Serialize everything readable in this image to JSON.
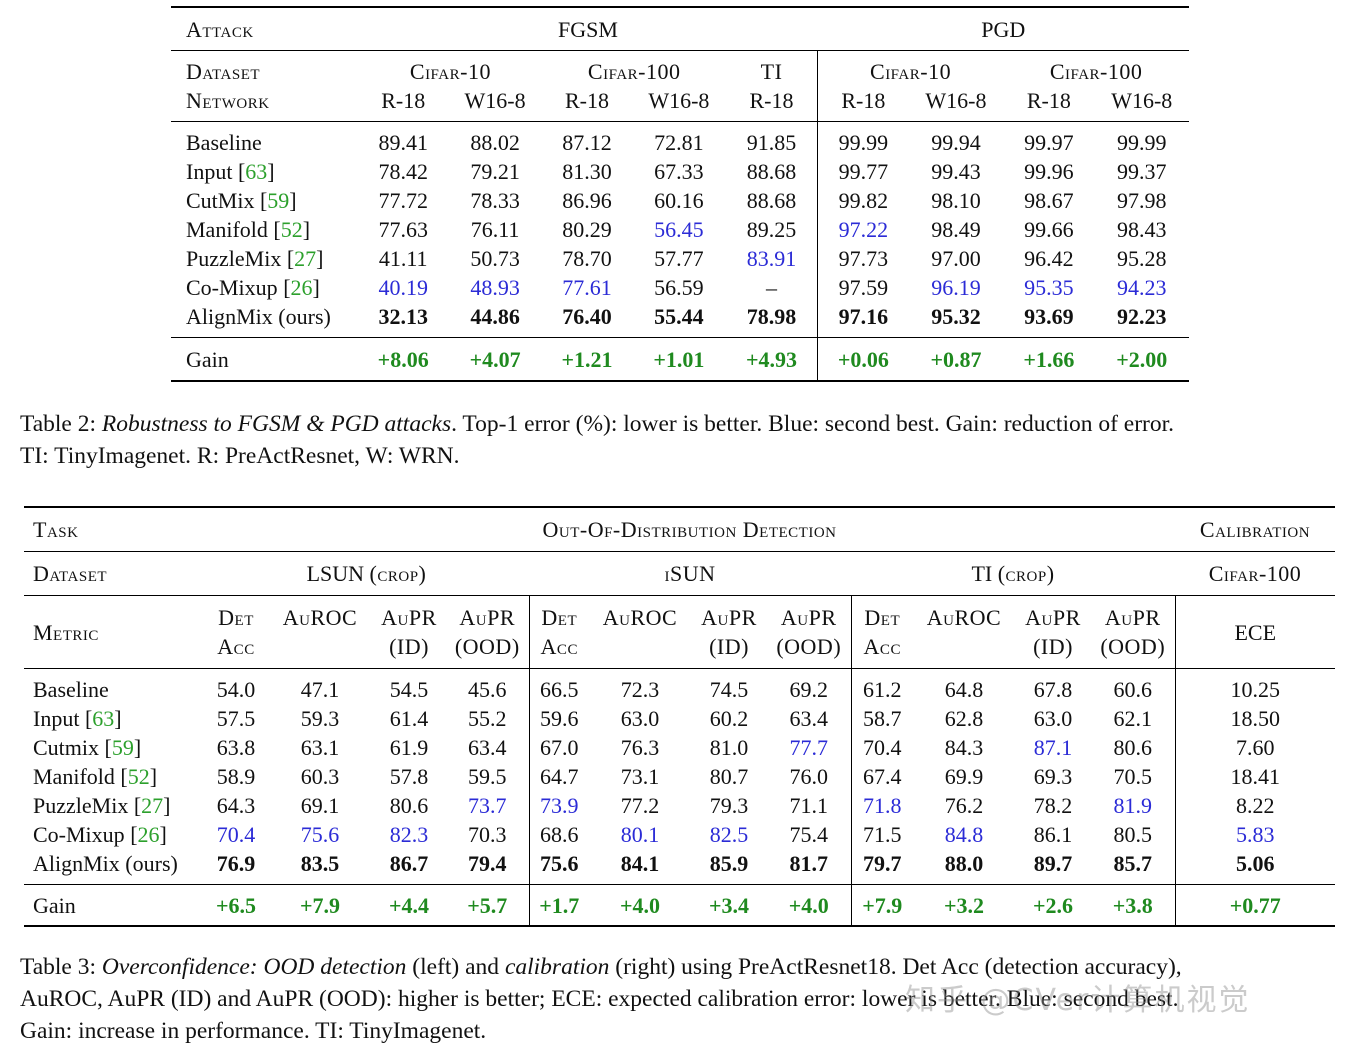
{
  "table2": {
    "attack_label": "Attack",
    "fgsm": "FGSM",
    "pgd": "PGD",
    "dataset_label": "Dataset",
    "network_label": "Network",
    "datasets": [
      "Cifar-10",
      "Cifar-100",
      "TI",
      "Cifar-10",
      "Cifar-100"
    ],
    "networks": [
      "R-18",
      "W16-8",
      "R-18",
      "W16-8",
      "R-18",
      "R-18",
      "W16-8",
      "R-18",
      "W16-8"
    ],
    "rows": [
      {
        "method": "Baseline",
        "ref": "",
        "values": [
          "89.41",
          "88.02",
          "87.12",
          "72.81",
          "91.85",
          "99.99",
          "99.94",
          "99.97",
          "99.99"
        ]
      },
      {
        "method": "Input",
        "ref": "63",
        "values": [
          "78.42",
          "79.21",
          "81.30",
          "67.33",
          "88.68",
          "99.77",
          "99.43",
          "99.96",
          "99.37"
        ]
      },
      {
        "method": "CutMix",
        "ref": "59",
        "values": [
          "77.72",
          "78.33",
          "86.96",
          "60.16",
          "88.68",
          "99.82",
          "98.10",
          "98.67",
          "97.98"
        ]
      },
      {
        "method": "Manifold",
        "ref": "52",
        "values": [
          "77.63",
          "76.11",
          "80.29",
          "56.45",
          "89.25",
          "97.22",
          "98.49",
          "99.66",
          "98.43"
        ]
      },
      {
        "method": "PuzzleMix",
        "ref": "27",
        "values": [
          "41.11",
          "50.73",
          "78.70",
          "57.77",
          "83.91",
          "97.73",
          "97.00",
          "96.42",
          "95.28"
        ]
      },
      {
        "method": "Co-Mixup",
        "ref": "26",
        "values": [
          "40.19",
          "48.93",
          "77.61",
          "56.59",
          "–",
          "97.59",
          "96.19",
          "95.35",
          "94.23"
        ]
      },
      {
        "method": "AlignMix (ours)",
        "ref": "",
        "values": [
          "32.13",
          "44.86",
          "76.40",
          "55.44",
          "78.98",
          "97.16",
          "95.32",
          "93.69",
          "92.23"
        ]
      }
    ],
    "gain_label": "Gain",
    "gain": [
      "+8.06",
      "+4.07",
      "+1.21",
      "+1.01",
      "+4.93",
      "+0.06",
      "+0.87",
      "+1.66",
      "+2.00"
    ]
  },
  "caption2": {
    "prefix": "Table 2: ",
    "title": "Robustness to FGSM & PGD attacks",
    "rest": ". Top-1 error (%): lower is better. Blue: second best. Gain: reduction of error.",
    "line2": "TI: TinyImagenet. R: PreActResnet, W: WRN."
  },
  "table3": {
    "task_label": "Task",
    "ood_label": "Out-Of-Distribution Detection",
    "calibration_label": "Calibration",
    "dataset_label": "Dataset",
    "lsun": "LSUN",
    "lsun_crop": "(crop)",
    "isun": "iSUN",
    "ti": "TI",
    "ti_crop": "(crop)",
    "cifar100": "Cifar-100",
    "metric_label": "Metric",
    "metrics_top": [
      "Det",
      "AuROC",
      "AuPR",
      "AuPR"
    ],
    "metrics_bottom": [
      "Acc",
      "",
      "(ID)",
      "(OOD)"
    ],
    "ece": "ECE",
    "rows": [
      {
        "method": "Baseline",
        "ref": "",
        "values": [
          "54.0",
          "47.1",
          "54.5",
          "45.6",
          "66.5",
          "72.3",
          "74.5",
          "69.2",
          "61.2",
          "64.8",
          "67.8",
          "60.6",
          "10.25"
        ]
      },
      {
        "method": "Input",
        "ref": "63",
        "values": [
          "57.5",
          "59.3",
          "61.4",
          "55.2",
          "59.6",
          "63.0",
          "60.2",
          "63.4",
          "58.7",
          "62.8",
          "63.0",
          "62.1",
          "18.50"
        ]
      },
      {
        "method": "Cutmix",
        "ref": "59",
        "values": [
          "63.8",
          "63.1",
          "61.9",
          "63.4",
          "67.0",
          "76.3",
          "81.0",
          "77.7",
          "70.4",
          "84.3",
          "87.1",
          "80.6",
          "7.60"
        ]
      },
      {
        "method": "Manifold",
        "ref": "52",
        "values": [
          "58.9",
          "60.3",
          "57.8",
          "59.5",
          "64.7",
          "73.1",
          "80.7",
          "76.0",
          "67.4",
          "69.9",
          "69.3",
          "70.5",
          "18.41"
        ]
      },
      {
        "method": "PuzzleMix",
        "ref": "27",
        "values": [
          "64.3",
          "69.1",
          "80.6",
          "73.7",
          "73.9",
          "77.2",
          "79.3",
          "71.1",
          "71.8",
          "76.2",
          "78.2",
          "81.9",
          "8.22"
        ]
      },
      {
        "method": "Co-Mixup",
        "ref": "26",
        "values": [
          "70.4",
          "75.6",
          "82.3",
          "70.3",
          "68.6",
          "80.1",
          "82.5",
          "75.4",
          "71.5",
          "84.8",
          "86.1",
          "80.5",
          "5.83"
        ]
      },
      {
        "method": "AlignMix (ours)",
        "ref": "",
        "values": [
          "76.9",
          "83.5",
          "86.7",
          "79.4",
          "75.6",
          "84.1",
          "85.9",
          "81.7",
          "79.7",
          "88.0",
          "89.7",
          "85.7",
          "5.06"
        ]
      }
    ],
    "gain_label": "Gain",
    "gain": [
      "+6.5",
      "+7.9",
      "+4.4",
      "+5.7",
      "+1.7",
      "+4.0",
      "+3.4",
      "+4.0",
      "+7.9",
      "+3.2",
      "+2.6",
      "+3.8",
      "+0.77"
    ]
  },
  "caption3": {
    "prefix": "Table 3: ",
    "title1": "Overconfidence: OOD detection",
    "mid1": " (left) and ",
    "title2": "calibration",
    "rest1": " (right) using PreActResnet18. Det Acc (detection accuracy),",
    "line2": "AuROC, AuPR (ID) and AuPR (OOD): higher is better; ECE: expected calibration error: lower is better. Blue: second best.",
    "line3": "Gain: increase in performance. TI: TinyImagenet."
  },
  "watermark": "知乎 @CVer计算机视觉",
  "colors": {
    "second_best": "#2b2bd6",
    "gain": "#1f8a1f",
    "citation": "#2ca02c"
  }
}
